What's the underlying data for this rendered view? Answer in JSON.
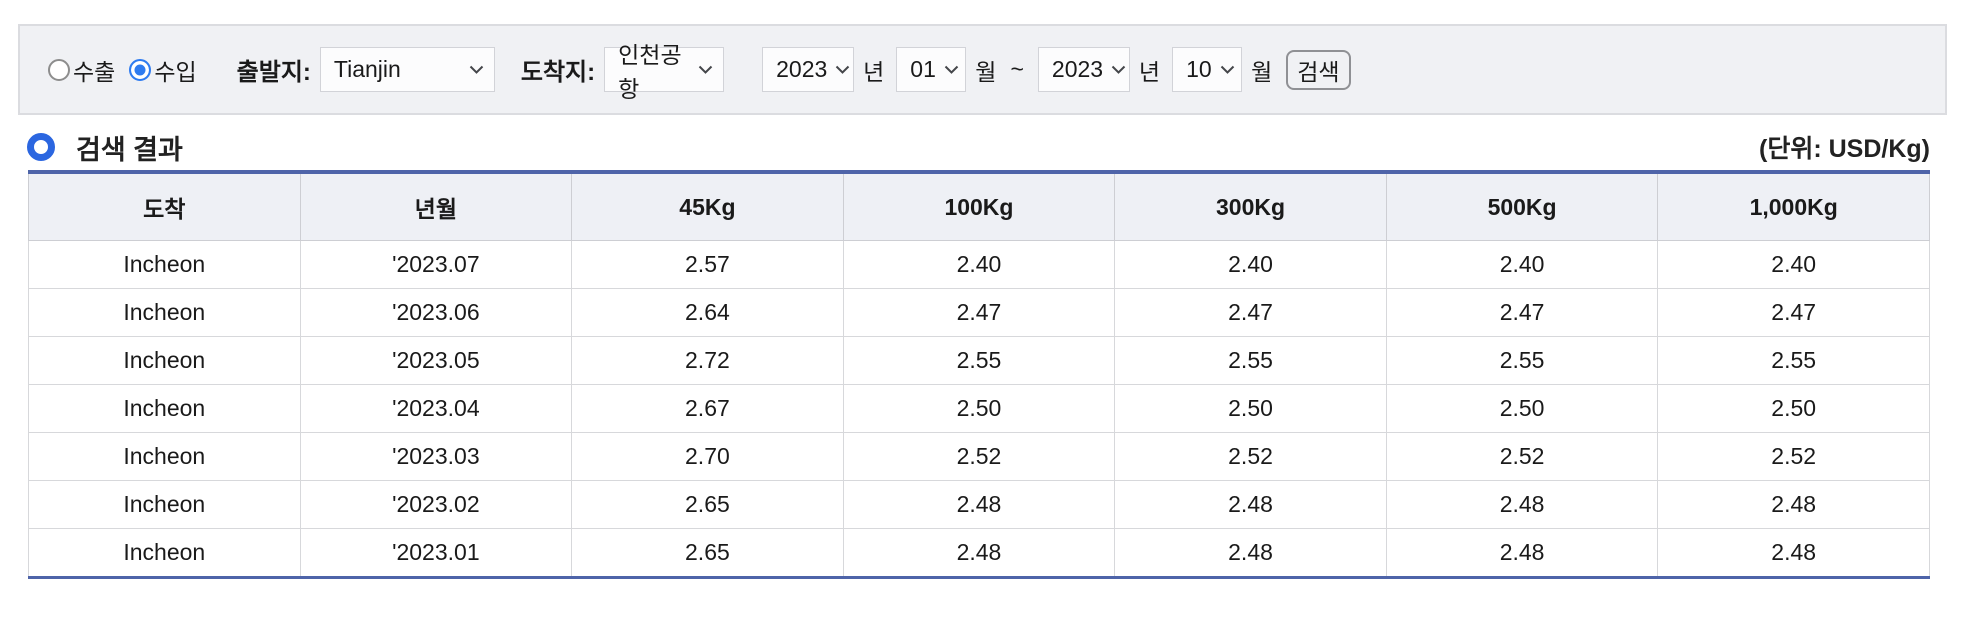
{
  "filter": {
    "radios": [
      {
        "label": "수출",
        "selected": false
      },
      {
        "label": "수입",
        "selected": true
      }
    ],
    "origin": {
      "label": "출발지:",
      "value": "Tianjin"
    },
    "destination": {
      "label": "도착지:",
      "value": "인천공항"
    },
    "period": {
      "from_year": "2023",
      "from_month": "01",
      "to_year": "2023",
      "to_month": "10",
      "year_unit": "년",
      "month_unit": "월",
      "separator": "~"
    },
    "search_label": "검색"
  },
  "results": {
    "title": "검색 결과",
    "unit": "(단위: USD/Kg)"
  },
  "table": {
    "columns": [
      "도착",
      "년월",
      "45Kg",
      "100Kg",
      "300Kg",
      "500Kg",
      "1,000Kg"
    ],
    "rows": [
      [
        "Incheon",
        "'2023.07",
        "2.57",
        "2.40",
        "2.40",
        "2.40",
        "2.40"
      ],
      [
        "Incheon",
        "'2023.06",
        "2.64",
        "2.47",
        "2.47",
        "2.47",
        "2.47"
      ],
      [
        "Incheon",
        "'2023.05",
        "2.72",
        "2.55",
        "2.55",
        "2.55",
        "2.55"
      ],
      [
        "Incheon",
        "'2023.04",
        "2.67",
        "2.50",
        "2.50",
        "2.50",
        "2.50"
      ],
      [
        "Incheon",
        "'2023.03",
        "2.70",
        "2.52",
        "2.52",
        "2.52",
        "2.52"
      ],
      [
        "Incheon",
        "'2023.02",
        "2.65",
        "2.48",
        "2.48",
        "2.48",
        "2.48"
      ],
      [
        "Incheon",
        "'2023.01",
        "2.65",
        "2.48",
        "2.48",
        "2.48",
        "2.48"
      ]
    ]
  },
  "colors": {
    "table_accent_blue": "#4e64a9",
    "bullet_ring_blue": "#2b66e0",
    "radio_selected_blue": "#2e7bf0",
    "header_row_bg": "#eef0f5",
    "filter_bar_bg": "#f0f1f4"
  }
}
